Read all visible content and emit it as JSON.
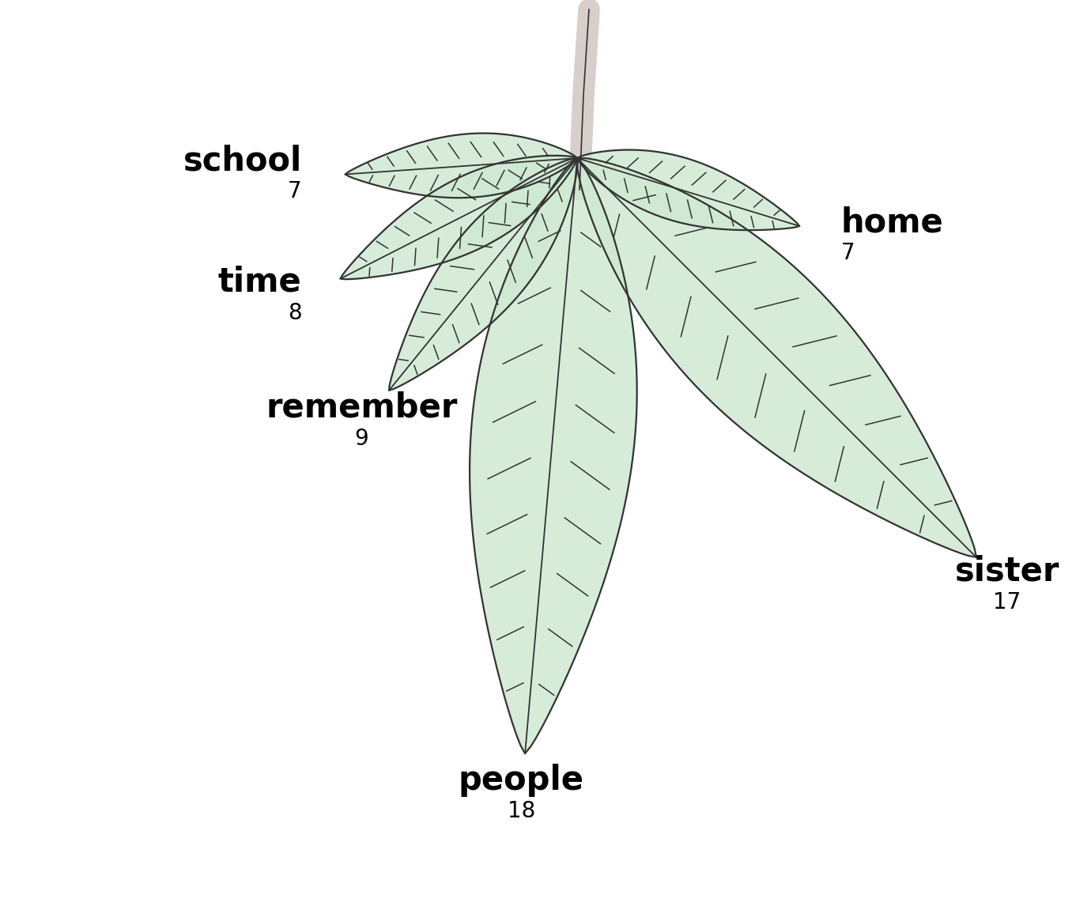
{
  "chart_data": {
    "type": "leaf",
    "categories": [
      "school",
      "time",
      "remember",
      "people",
      "sister",
      "home"
    ],
    "values": [
      7,
      8,
      9,
      18,
      17,
      7
    ],
    "data_labels": true,
    "tick_labels": false,
    "color": "#cfe9d3"
  }
}
